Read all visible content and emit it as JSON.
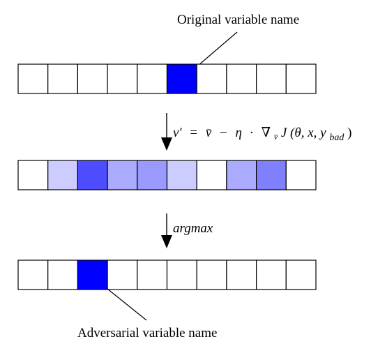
{
  "labels": {
    "original": "Original variable name",
    "adversarial": "Adversarial variable name"
  },
  "steps": {
    "gradient": {
      "v_prime": "v′",
      "equals": "=",
      "v_bar": "v̄",
      "minus": "−",
      "eta": "η",
      "dot": "·",
      "nabla": "∇",
      "nabla_sub": "v̄",
      "J": "J",
      "args": "(θ, x, y",
      "bad_sub": "bad",
      "close_paren": ")"
    },
    "argmax": "argmax"
  },
  "rows": [
    {
      "name": "original-row",
      "cells": [
        "#ffffff",
        "#ffffff",
        "#ffffff",
        "#ffffff",
        "#ffffff",
        "#0000ff",
        "#ffffff",
        "#ffffff",
        "#ffffff",
        "#ffffff"
      ]
    },
    {
      "name": "gradient-row",
      "cells": [
        "#ffffff",
        "#ccccff",
        "#4d4dff",
        "#aaaaff",
        "#9999ff",
        "#ccccff",
        "#ffffff",
        "#aaaaff",
        "#8080ff",
        "#ffffff"
      ]
    },
    {
      "name": "adversarial-row",
      "cells": [
        "#ffffff",
        "#ffffff",
        "#0000ff",
        "#ffffff",
        "#ffffff",
        "#ffffff",
        "#ffffff",
        "#ffffff",
        "#ffffff",
        "#ffffff"
      ]
    }
  ]
}
